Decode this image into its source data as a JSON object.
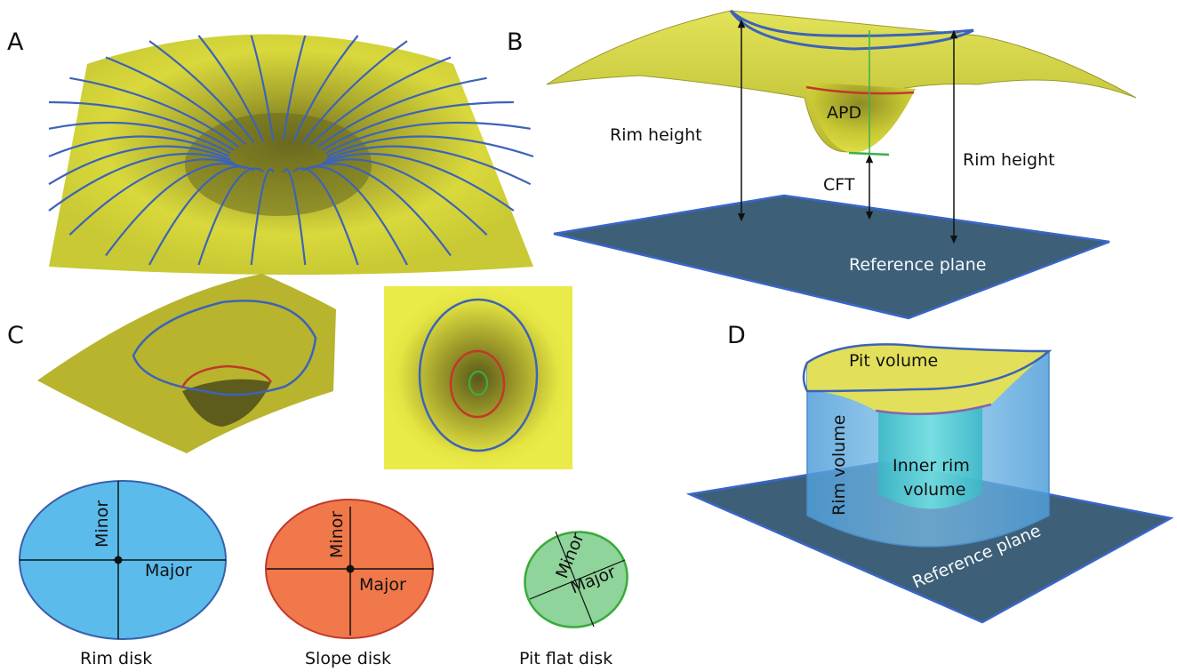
{
  "panels": {
    "a": {
      "letter": "A"
    },
    "b": {
      "letter": "B",
      "rim_height_left": "Rim height",
      "rim_height_right": "Rim height",
      "apd": "APD",
      "cft": "CFT",
      "reference_plane": "Reference plane"
    },
    "c": {
      "letter": "C",
      "disks": [
        {
          "caption": "Rim disk",
          "minor": "Minor",
          "major": "Major",
          "fill": "#5bbcec",
          "stroke": "#3a5fb0"
        },
        {
          "caption": "Slope disk",
          "minor": "Minor",
          "major": "Major",
          "fill": "#f0784a",
          "stroke": "#c0392b"
        },
        {
          "caption": "Pit flat disk",
          "minor": "Minor",
          "major": "Major",
          "fill": "#8fd49a",
          "stroke": "#3aaa3a"
        }
      ]
    },
    "d": {
      "letter": "D",
      "pit_volume": "Pit volume",
      "rim_volume": "Rim volume",
      "inner_rim_line1": "Inner rim",
      "inner_rim_line2": "volume",
      "reference_plane": "Reference plane"
    }
  },
  "colors": {
    "surface": "#d7d83a",
    "contour_blue": "#3d63b8",
    "contour_red": "#c0392b",
    "contour_green": "#3ab04a",
    "plane": "#3d5f78"
  }
}
